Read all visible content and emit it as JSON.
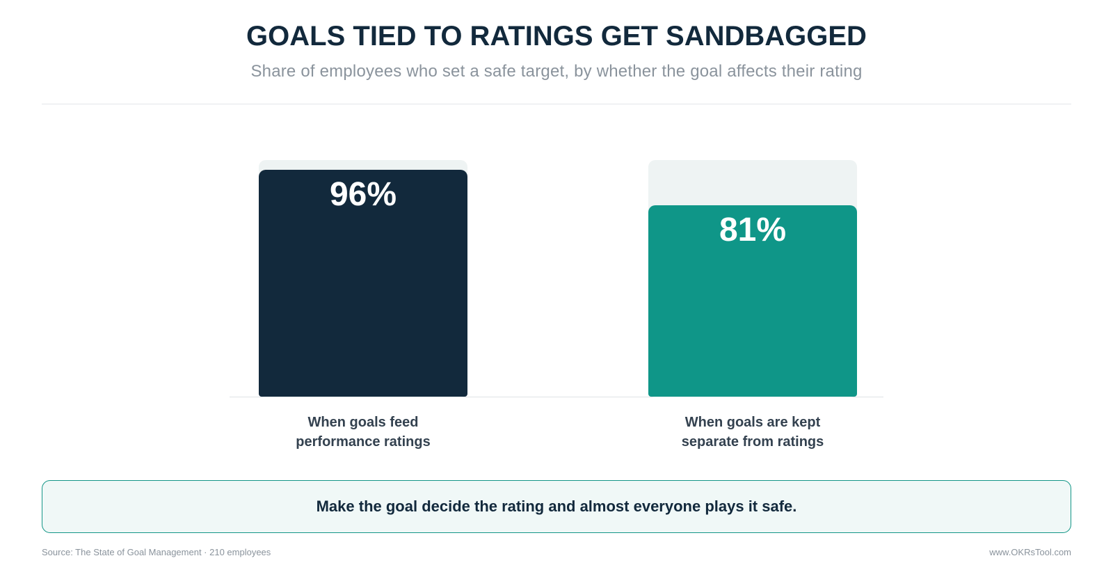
{
  "header": {
    "title": "GOALS TIED TO RATINGS GET SANDBAGGED",
    "subtitle": "Share of employees who set a safe target, by whether the goal affects their rating"
  },
  "chart_data": {
    "type": "bar",
    "title": "GOALS TIED TO RATINGS GET SANDBAGGED",
    "subtitle": "Share of employees who set a safe target, by whether the goal affects their rating",
    "categories": [
      [
        "When goals feed",
        "performance ratings"
      ],
      [
        "When goals are kept",
        "separate from ratings"
      ]
    ],
    "values": [
      96,
      81
    ],
    "value_labels": [
      "96%",
      "81%"
    ],
    "ylim": [
      0,
      100
    ],
    "colors": [
      "#12293c",
      "#0f9688"
    ],
    "track_color": "#eef3f3",
    "grid": false
  },
  "takeaway": {
    "text": "Make the goal decide the rating and almost everyone plays it safe."
  },
  "footer": {
    "source": "Source: The State of Goal Management · 210 employees",
    "brand": "www.OKRsTool.com"
  }
}
